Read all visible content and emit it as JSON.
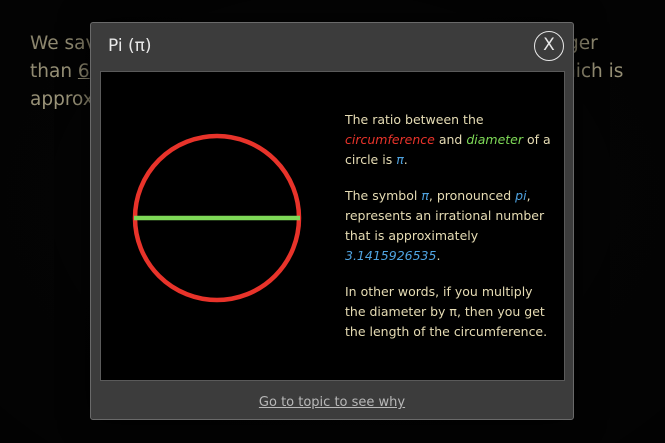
{
  "background": {
    "line1_start": "We sav",
    "line1_end": "ger",
    "line2_start": "than ",
    "line2_link": "6",
    "line2_end": "hich is",
    "line3_start": "approx"
  },
  "modal": {
    "title": "Pi (π)",
    "close_label": "X",
    "p1": {
      "t1": "The ratio between the ",
      "circumference": "circumference",
      "t2": " and ",
      "diameter": "diameter",
      "t3": " of a circle is ",
      "pi": "π",
      "t4": "."
    },
    "p2": {
      "t1": "The symbol ",
      "pi": "π",
      "t2": ", pronounced ",
      "pi_word": "pi",
      "t3": ", represents an irrational number that is approximately ",
      "value": "3.1415926535",
      "t4": "."
    },
    "p3": "In other words, if you multiply the diameter by π, then you get the length of the circumference.",
    "footer_link": "Go to topic to see why"
  },
  "colors": {
    "circumference": "#e8332a",
    "diameter": "#7ed957",
    "pi": "#4fa3e0"
  }
}
